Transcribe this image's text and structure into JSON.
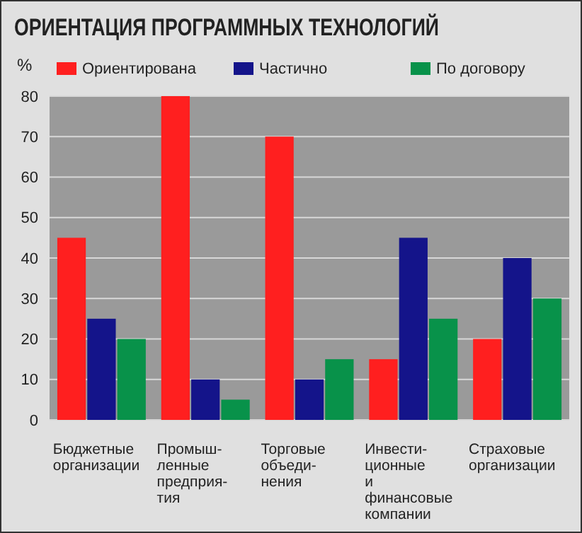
{
  "chart_data": {
    "type": "bar",
    "title": "ОРИЕНТАЦИЯ ПРОГРАММНЫХ ТЕХНОЛОГИЙ",
    "ylabel": "%",
    "categories": [
      "Бюджетные\nорганизации",
      "Промыш-\nленные\nпредприя-\nтия",
      "Торговые\nобъеди-\nнения",
      "Инвести-\nционные\nи\nфинансовые\nкомпании",
      "Страховые\nорганизации"
    ],
    "series": [
      {
        "name": "Ориентирована",
        "color": "#ff1f1f",
        "values": [
          45,
          80,
          70,
          15,
          20
        ]
      },
      {
        "name": "Частично",
        "color": "#14148a",
        "values": [
          25,
          10,
          10,
          45,
          40
        ]
      },
      {
        "name": "По договору",
        "color": "#08924a",
        "values": [
          20,
          5,
          15,
          25,
          30
        ]
      }
    ],
    "ylim": [
      0,
      80
    ],
    "yticks": [
      0,
      10,
      20,
      30,
      40,
      50,
      60,
      70,
      80
    ],
    "grid": "y",
    "legend": "top"
  }
}
